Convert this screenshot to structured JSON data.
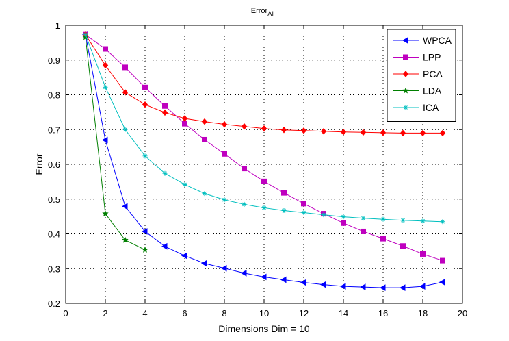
{
  "chart_data": {
    "type": "line",
    "title": "Error",
    "title_subscript": "All",
    "xlabel": "Dimensions Dim = 10",
    "ylabel": "Error",
    "xlim": [
      0,
      20
    ],
    "ylim": [
      0.2,
      1
    ],
    "xticks": [
      0,
      2,
      4,
      6,
      8,
      10,
      12,
      14,
      16,
      18,
      20
    ],
    "yticks": [
      0.2,
      0.3,
      0.4,
      0.5,
      0.6,
      0.7,
      0.8,
      0.9,
      1
    ],
    "grid": true,
    "legend_position": "top-right",
    "series": [
      {
        "name": "WPCA",
        "color": "#0000ff",
        "marker": "triangle-left",
        "x": [
          1,
          2,
          3,
          4,
          5,
          6,
          7,
          8,
          9,
          10,
          11,
          12,
          13,
          14,
          15,
          16,
          17,
          18,
          19
        ],
        "y": [
          0.973,
          0.67,
          0.479,
          0.407,
          0.364,
          0.337,
          0.315,
          0.301,
          0.287,
          0.276,
          0.268,
          0.26,
          0.254,
          0.249,
          0.247,
          0.245,
          0.245,
          0.249,
          0.261
        ]
      },
      {
        "name": "LPP",
        "color": "#bf00bf",
        "marker": "square",
        "x": [
          1,
          2,
          3,
          4,
          5,
          6,
          7,
          8,
          9,
          10,
          11,
          12,
          13,
          14,
          15,
          16,
          17,
          18,
          19
        ],
        "y": [
          0.973,
          0.932,
          0.879,
          0.821,
          0.768,
          0.717,
          0.671,
          0.63,
          0.588,
          0.551,
          0.518,
          0.487,
          0.458,
          0.431,
          0.407,
          0.386,
          0.365,
          0.342,
          0.323
        ]
      },
      {
        "name": "PCA",
        "color": "#ff0000",
        "marker": "diamond",
        "x": [
          1,
          2,
          3,
          4,
          5,
          6,
          7,
          8,
          9,
          10,
          11,
          12,
          13,
          14,
          15,
          16,
          17,
          18,
          19
        ],
        "y": [
          0.973,
          0.885,
          0.807,
          0.772,
          0.749,
          0.732,
          0.723,
          0.715,
          0.709,
          0.703,
          0.699,
          0.697,
          0.695,
          0.693,
          0.692,
          0.691,
          0.69,
          0.69,
          0.69
        ]
      },
      {
        "name": "LDA",
        "color": "#007f00",
        "marker": "star",
        "x": [
          1,
          2,
          3,
          4
        ],
        "y": [
          0.966,
          0.458,
          0.382,
          0.354
        ]
      },
      {
        "name": "ICA",
        "color": "#00bfbf",
        "marker": "asterisk",
        "x": [
          1,
          2,
          3,
          4,
          5,
          6,
          7,
          8,
          9,
          10,
          11,
          12,
          13,
          14,
          15,
          16,
          17,
          18,
          19
        ],
        "y": [
          0.973,
          0.822,
          0.7,
          0.624,
          0.574,
          0.542,
          0.516,
          0.498,
          0.485,
          0.475,
          0.467,
          0.461,
          0.455,
          0.449,
          0.445,
          0.442,
          0.439,
          0.437,
          0.435
        ]
      }
    ]
  }
}
